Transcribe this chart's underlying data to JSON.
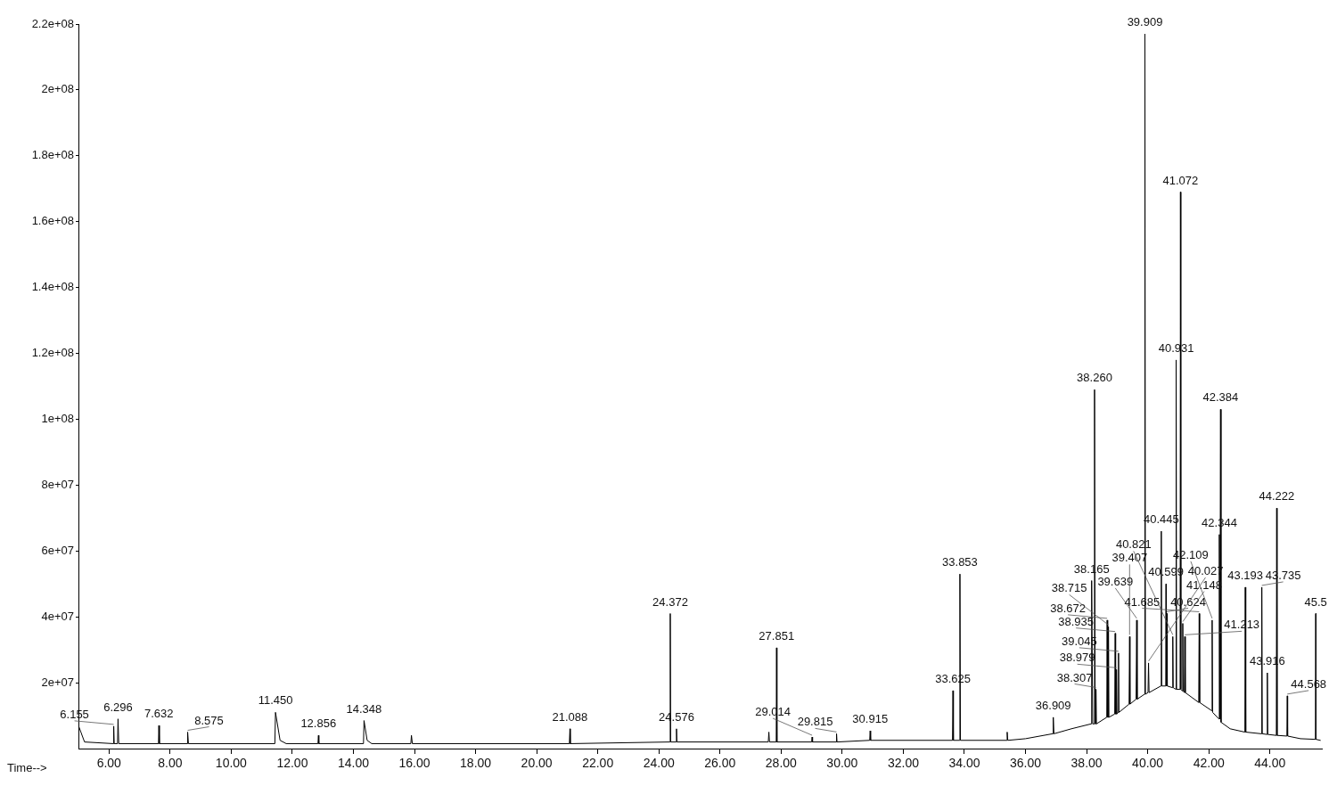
{
  "chart_data": {
    "type": "line",
    "xlabel": "Time-->",
    "color": "#000000",
    "marker": "none",
    "xlim": [
      5,
      45.7
    ],
    "xticks": [
      {
        "value": 6,
        "label": "6.00"
      },
      {
        "value": 8,
        "label": "8.00"
      },
      {
        "value": 10,
        "label": "10.00"
      },
      {
        "value": 12,
        "label": "12.00"
      },
      {
        "value": 14,
        "label": "14.00"
      },
      {
        "value": 16,
        "label": "16.00"
      },
      {
        "value": 18,
        "label": "18.00"
      },
      {
        "value": 20,
        "label": "20.00"
      },
      {
        "value": 22,
        "label": "22.00"
      },
      {
        "value": 24,
        "label": "24.00"
      },
      {
        "value": 26,
        "label": "26.00"
      },
      {
        "value": 28,
        "label": "28.00"
      },
      {
        "value": 30,
        "label": "30.00"
      },
      {
        "value": 32,
        "label": "32.00"
      },
      {
        "value": 34,
        "label": "34.00"
      },
      {
        "value": 36,
        "label": "36.00"
      },
      {
        "value": 38,
        "label": "38.00"
      },
      {
        "value": 40,
        "label": "40.00"
      },
      {
        "value": 42,
        "label": "42.00"
      },
      {
        "value": 44,
        "label": "44.00"
      }
    ],
    "ylim": [
      0,
      220000000
    ],
    "yticks": [
      {
        "value": 20000000,
        "label": "2e+07"
      },
      {
        "value": 40000000,
        "label": "4e+07"
      },
      {
        "value": 60000000,
        "label": "6e+07"
      },
      {
        "value": 80000000,
        "label": "8e+07"
      },
      {
        "value": 100000000,
        "label": "1e+08"
      },
      {
        "value": 120000000,
        "label": "1.2e+08"
      },
      {
        "value": 140000000,
        "label": "1.4e+08"
      },
      {
        "value": 160000000,
        "label": "1.6e+08"
      },
      {
        "value": 180000000,
        "label": "1.8e+08"
      },
      {
        "value": 200000000,
        "label": "2e+08"
      },
      {
        "value": 220000000,
        "label": "2.2e+08"
      }
    ],
    "x": [
      5.0,
      5.2,
      6.14,
      6.155,
      6.17,
      6.28,
      6.296,
      6.32,
      7.62,
      7.632,
      7.65,
      8.56,
      8.575,
      8.6,
      11.43,
      11.45,
      11.6,
      11.8,
      12.84,
      12.856,
      12.87,
      14.33,
      14.348,
      14.45,
      14.6,
      15.88,
      15.9,
      15.93,
      21.07,
      21.088,
      21.1,
      24.36,
      24.372,
      24.385,
      24.56,
      24.576,
      24.59,
      27.58,
      27.6,
      27.62,
      27.84,
      27.851,
      27.865,
      29.0,
      29.014,
      29.03,
      29.8,
      29.815,
      29.83,
      30.9,
      30.915,
      30.93,
      33.61,
      33.625,
      33.64,
      33.84,
      33.853,
      33.87,
      35.38,
      35.4,
      35.42,
      36.0,
      36.89,
      36.909,
      36.93,
      37.5,
      38.15,
      38.165,
      38.2,
      38.25,
      38.26,
      38.28,
      38.3,
      38.307,
      38.32,
      38.66,
      38.672,
      38.69,
      38.7,
      38.715,
      38.73,
      38.92,
      38.935,
      38.95,
      38.97,
      38.979,
      38.995,
      39.03,
      39.045,
      39.06,
      39.39,
      39.407,
      39.42,
      39.62,
      39.639,
      39.655,
      39.895,
      39.909,
      39.925,
      40.01,
      40.027,
      40.045,
      40.43,
      40.445,
      40.46,
      40.59,
      40.599,
      40.61,
      40.624,
      40.64,
      40.81,
      40.821,
      40.835,
      40.92,
      40.931,
      40.945,
      41.06,
      41.072,
      41.085,
      41.135,
      41.148,
      41.16,
      41.2,
      41.213,
      41.23,
      41.67,
      41.685,
      41.7,
      42.095,
      42.109,
      42.125,
      42.33,
      42.344,
      42.36,
      42.37,
      42.384,
      42.4,
      42.7,
      43.18,
      43.193,
      43.21,
      43.72,
      43.735,
      43.75,
      43.9,
      43.916,
      43.93,
      44.21,
      44.222,
      44.235,
      44.555,
      44.568,
      44.58,
      45.0,
      45.49,
      45.5,
      45.51,
      45.65
    ],
    "values": [
      7000000,
      2000000,
      1500000,
      6800000,
      1500000,
      1500000,
      9000000,
      1500000,
      1500000,
      7000000,
      1500000,
      1500000,
      5000000,
      1500000,
      1500000,
      11000000,
      2500000,
      1500000,
      1500000,
      4000000,
      1500000,
      1500000,
      8500000,
      2500000,
      1500000,
      1500000,
      4000000,
      1500000,
      1500000,
      6000000,
      1500000,
      2000000,
      41000000,
      2000000,
      2000000,
      6000000,
      2000000,
      2000000,
      5000000,
      2000000,
      2000000,
      30600000,
      2000000,
      2000000,
      3500000,
      2000000,
      2000000,
      4500000,
      2000000,
      2500000,
      5400000,
      2500000,
      2500000,
      17600000,
      2500000,
      2500000,
      53000000,
      2500000,
      2500000,
      5000000,
      2500000,
      3000000,
      4500000,
      9500000,
      4500000,
      6000000,
      7500000,
      51000000,
      7500000,
      7500000,
      109000000,
      7500000,
      7500000,
      18000000,
      7500000,
      9500000,
      39000000,
      9500000,
      9500000,
      37000000,
      9500000,
      10500000,
      35000000,
      10500000,
      10500000,
      24000000,
      10500000,
      11000000,
      29000000,
      11000000,
      13500000,
      34000000,
      13500000,
      15000000,
      39000000,
      15000000,
      16500000,
      217000000,
      16500000,
      17000000,
      26000000,
      17000000,
      19000000,
      66000000,
      19000000,
      19000000,
      50000000,
      19000000,
      41000000,
      19000000,
      18500000,
      34000000,
      18500000,
      18000000,
      118000000,
      18000000,
      18000000,
      169000000,
      18000000,
      17500000,
      38000000,
      17500000,
      17000000,
      34000000,
      17000000,
      14000000,
      41000000,
      14000000,
      11500000,
      39000000,
      11000000,
      9000000,
      65000000,
      9000000,
      9000000,
      103000000,
      8000000,
      6000000,
      5000000,
      49000000,
      5000000,
      4500000,
      49000000,
      4500000,
      4300000,
      23000000,
      4300000,
      4000000,
      73000000,
      4000000,
      3800000,
      16000000,
      3800000,
      3000000,
      2800000,
      41000000,
      2800000,
      2500000
    ],
    "annotations": [
      {
        "text": "6.155",
        "x": 6.155,
        "y": 6800000
      },
      {
        "text": "6.296",
        "x": 6.296,
        "y": 9000000
      },
      {
        "text": "7.632",
        "x": 7.632,
        "y": 7000000
      },
      {
        "text": "8.575",
        "x": 8.575,
        "y": 5000000
      },
      {
        "text": "11.450",
        "x": 11.45,
        "y": 11000000
      },
      {
        "text": "12.856",
        "x": 12.856,
        "y": 4000000
      },
      {
        "text": "14.348",
        "x": 14.348,
        "y": 8500000
      },
      {
        "text": "21.088",
        "x": 21.088,
        "y": 6000000
      },
      {
        "text": "24.372",
        "x": 24.372,
        "y": 41000000
      },
      {
        "text": "24.576",
        "x": 24.576,
        "y": 6000000
      },
      {
        "text": "27.851",
        "x": 27.851,
        "y": 30600000
      },
      {
        "text": "29.014",
        "x": 29.014,
        "y": 3500000
      },
      {
        "text": "29.815",
        "x": 29.815,
        "y": 4500000
      },
      {
        "text": "30.915",
        "x": 30.915,
        "y": 5400000
      },
      {
        "text": "33.625",
        "x": 33.625,
        "y": 17600000
      },
      {
        "text": "33.853",
        "x": 33.853,
        "y": 53000000
      },
      {
        "text": "36.909",
        "x": 36.909,
        "y": 9500000
      },
      {
        "text": "38.165",
        "x": 38.165,
        "y": 51000000
      },
      {
        "text": "38.260",
        "x": 38.26,
        "y": 109000000
      },
      {
        "text": "38.307",
        "x": 38.307,
        "y": 18000000
      },
      {
        "text": "38.672",
        "x": 38.672,
        "y": 39000000
      },
      {
        "text": "38.715",
        "x": 38.715,
        "y": 37000000
      },
      {
        "text": "38.935",
        "x": 38.935,
        "y": 35000000
      },
      {
        "text": "38.979",
        "x": 38.979,
        "y": 24000000
      },
      {
        "text": "39.045",
        "x": 39.045,
        "y": 29000000
      },
      {
        "text": "39.407",
        "x": 39.407,
        "y": 34000000
      },
      {
        "text": "39.639",
        "x": 39.639,
        "y": 39000000
      },
      {
        "text": "39.909",
        "x": 39.909,
        "y": 217000000
      },
      {
        "text": "40.027",
        "x": 40.027,
        "y": 26000000
      },
      {
        "text": "40.445",
        "x": 40.445,
        "y": 66000000
      },
      {
        "text": "40.599",
        "x": 40.599,
        "y": 50000000
      },
      {
        "text": "40.624",
        "x": 40.624,
        "y": 41000000
      },
      {
        "text": "40.821",
        "x": 40.821,
        "y": 34000000
      },
      {
        "text": "40.931",
        "x": 40.931,
        "y": 118000000
      },
      {
        "text": "41.072",
        "x": 41.072,
        "y": 169000000
      },
      {
        "text": "41.148",
        "x": 41.148,
        "y": 38000000
      },
      {
        "text": "41.213",
        "x": 41.213,
        "y": 34000000
      },
      {
        "text": "41.685",
        "x": 41.685,
        "y": 41000000
      },
      {
        "text": "42.109",
        "x": 42.109,
        "y": 39000000
      },
      {
        "text": "42.344",
        "x": 42.344,
        "y": 65000000
      },
      {
        "text": "42.384",
        "x": 42.384,
        "y": 103000000
      },
      {
        "text": "43.193",
        "x": 43.193,
        "y": 49000000
      },
      {
        "text": "43.735",
        "x": 43.735,
        "y": 49000000
      },
      {
        "text": "43.916",
        "x": 43.916,
        "y": 23000000
      },
      {
        "text": "44.222",
        "x": 44.222,
        "y": 73000000
      },
      {
        "text": "44.568",
        "x": 44.568,
        "y": 16000000
      },
      {
        "text": "45.5",
        "x": 45.5,
        "y": 41000000
      }
    ]
  }
}
